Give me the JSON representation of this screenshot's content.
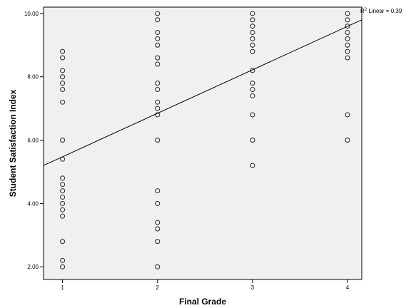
{
  "chart_data": {
    "type": "scatter",
    "title": "",
    "xlabel": "Final Grade",
    "ylabel": "Student Satisfaction Index",
    "x_ticks": [
      "1",
      "2",
      "3",
      "4"
    ],
    "y_ticks": [
      "2.00",
      "4.00",
      "6.00",
      "8.00",
      "10.00"
    ],
    "xlim": [
      0.8,
      4.15
    ],
    "ylim": [
      1.6,
      10.2
    ],
    "grid": false,
    "fit_line": {
      "label_prefix": "R",
      "label_suffix": " Linear = 0.39",
      "r2": 0.39,
      "x0": 0.8,
      "y0": 5.2,
      "x1": 4.15,
      "y1": 9.8
    },
    "series": [
      {
        "x": 1,
        "y": [
          8.8,
          8.6,
          8.2,
          8.0,
          7.8,
          7.6,
          7.2,
          6.0,
          5.4,
          4.8,
          4.6,
          4.4,
          4.2,
          4.0,
          3.8,
          3.6,
          2.8,
          2.2,
          2.0
        ]
      },
      {
        "x": 2,
        "y": [
          10.0,
          9.8,
          9.4,
          9.2,
          9.0,
          8.6,
          8.4,
          7.8,
          7.6,
          7.2,
          7.0,
          6.8,
          6.0,
          4.4,
          4.0,
          3.4,
          3.2,
          2.8,
          2.0
        ]
      },
      {
        "x": 3,
        "y": [
          10.0,
          9.8,
          9.6,
          9.4,
          9.2,
          9.0,
          8.8,
          8.2,
          7.8,
          7.6,
          7.4,
          6.8,
          6.0,
          5.2
        ]
      },
      {
        "x": 4,
        "y": [
          10.0,
          9.8,
          9.6,
          9.4,
          9.2,
          9.0,
          8.8,
          8.6,
          6.8,
          6.0
        ]
      }
    ]
  }
}
